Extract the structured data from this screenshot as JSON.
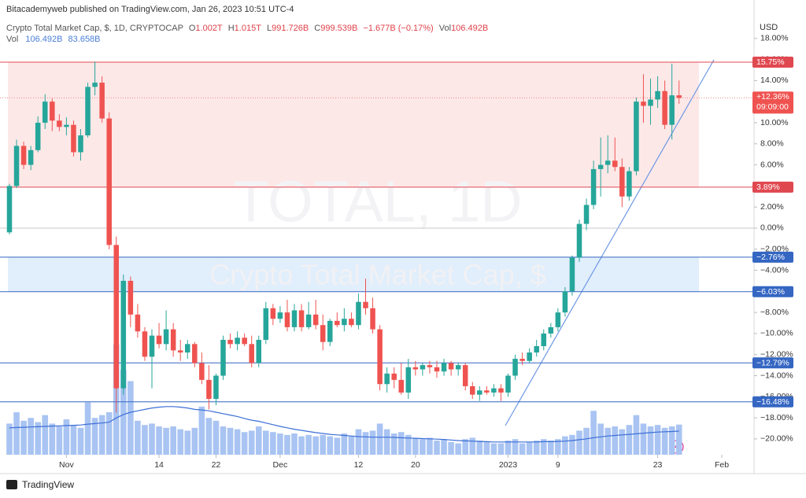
{
  "header": {
    "publisher": "Bitacademyweb published on TradingView.com, Jan 26, 2023 10:51 UTC-4",
    "symbol": "Crypto Total Market Cap, $, 1D, CRYPTOCAP",
    "ohlc_legend": [
      {
        "key": "O",
        "value": "1.002T"
      },
      {
        "key": "H",
        "value": "1.015T"
      },
      {
        "key": "L",
        "value": "991.726B"
      },
      {
        "key": "C",
        "value": "999.539B"
      }
    ],
    "change": "−1.677B (−0.17%)",
    "vol_legend": {
      "key": "Vol",
      "value": "106.492B"
    },
    "volume_line": {
      "key": "Vol",
      "value": "106.492B",
      "ma": "83.658B"
    },
    "footer": "TradingView"
  },
  "chart_data": {
    "type": "candlestick",
    "currency": "USD",
    "watermark": [
      "TOTAL, 1D",
      "Crypto Total Market Cap, $"
    ],
    "up_color": "#26a69a",
    "down_color": "#ef5350",
    "volume_color": "#a9c4f2",
    "ma_color": "#3d6fd6",
    "x": [
      0,
      1,
      2,
      3,
      4,
      5,
      6,
      7,
      8,
      9,
      10,
      11,
      12,
      13,
      14,
      15,
      16,
      17,
      18,
      19,
      20,
      21,
      22,
      23,
      24,
      25,
      26,
      27,
      28,
      29,
      30,
      31,
      32,
      33,
      34,
      35,
      36,
      37,
      38,
      39,
      40,
      41,
      42,
      43,
      44,
      45,
      46,
      47,
      48,
      49,
      50,
      51,
      52,
      53,
      54,
      55,
      56,
      57,
      58,
      59,
      60,
      61,
      62,
      63,
      64,
      65,
      66,
      67,
      68,
      69,
      70,
      71,
      72,
      73,
      74,
      75,
      76,
      77,
      78,
      79,
      80,
      81,
      82,
      83,
      84,
      85,
      86,
      87,
      88,
      89,
      90,
      91,
      92,
      93,
      94
    ],
    "xlim": [
      -1.326,
      104.53
    ],
    "xticks": [
      {
        "value": 8,
        "label": "Nov"
      },
      {
        "value": 21,
        "label": "14"
      },
      {
        "value": 29,
        "label": "22"
      },
      {
        "value": 38,
        "label": "Dec"
      },
      {
        "value": 49,
        "label": "12"
      },
      {
        "value": 57,
        "label": "20"
      },
      {
        "value": 70,
        "label": "2023"
      },
      {
        "value": 77,
        "label": "9"
      },
      {
        "value": 91,
        "label": "23"
      },
      {
        "value": 100,
        "label": "Feb"
      }
    ],
    "ylim": [
      -21.5,
      20
    ],
    "yticks": [
      {
        "value": 18,
        "label": "18.00%"
      },
      {
        "value": 16,
        "label": "16.00%"
      },
      {
        "value": 14,
        "label": "14.00%"
      },
      {
        "value": 12,
        "label": "12.00%"
      },
      {
        "value": 10,
        "label": "10.00%"
      },
      {
        "value": 8,
        "label": "8.00%"
      },
      {
        "value": 6,
        "label": "6.00%"
      },
      {
        "value": 4,
        "label": "4.00%"
      },
      {
        "value": 2,
        "label": "2.00%"
      },
      {
        "value": 0,
        "label": "0.00%"
      },
      {
        "value": -2,
        "label": "−2.00%"
      },
      {
        "value": -4,
        "label": "−4.00%"
      },
      {
        "value": -6,
        "label": "−6.00%"
      },
      {
        "value": -8,
        "label": "−8.00%"
      },
      {
        "value": -10,
        "label": "−10.00%"
      },
      {
        "value": -12,
        "label": "−12.00%"
      },
      {
        "value": -14,
        "label": "−14.00%"
      },
      {
        "value": -16,
        "label": "−16.00%"
      },
      {
        "value": -18,
        "label": "−18.00%"
      },
      {
        "value": -20,
        "label": "−20.00%"
      }
    ],
    "open": [
      -0.4,
      4.0,
      7.8,
      6.0,
      7.4,
      10.0,
      12.0,
      10.2,
      9.6,
      9.8,
      7.2,
      8.8,
      13.4,
      13.8,
      10.4,
      -1.6,
      -15.2,
      -5.0,
      -8.2,
      -9.8,
      -12.2,
      -10.2,
      -11.0,
      -9.6,
      -11.6,
      -11.8,
      -11.0,
      -12.8,
      -14.4,
      -16.2,
      -14.0,
      -10.6,
      -11.0,
      -10.4,
      -11.0,
      -12.8,
      -10.6,
      -7.6,
      -8.6,
      -8.0,
      -9.4,
      -7.8,
      -9.4,
      -8.2,
      -9.2,
      -10.8,
      -8.8,
      -9.2,
      -8.6,
      -9.2,
      -7.0,
      -7.6,
      -9.6,
      -14.8,
      -13.8,
      -14.4,
      -15.6,
      -13.2,
      -13.4,
      -13.0,
      -13.2,
      -13.6,
      -12.8,
      -13.4,
      -13.0,
      -15.0,
      -15.8,
      -15.4,
      -15.6,
      -15.2,
      -15.6,
      -14.0,
      -12.4,
      -12.6,
      -11.8,
      -11.2,
      -10.0,
      -9.4,
      -8.0,
      -6.0,
      -2.8,
      0.4,
      2.2,
      5.6,
      6.0,
      6.4,
      5.8,
      3.0,
      5.4,
      12.0,
      11.6,
      12.2,
      13.0,
      9.8,
      12.6
    ],
    "high": [
      4.2,
      8.4,
      8.2,
      7.8,
      10.6,
      12.7,
      12.3,
      10.8,
      10.5,
      10.2,
      9.4,
      13.8,
      15.8,
      14.4,
      11.0,
      -0.8,
      -4.4,
      -4.6,
      -7.2,
      -9.4,
      -9.6,
      -9.0,
      -7.8,
      -9.0,
      -10.6,
      -10.6,
      -10.8,
      -11.8,
      -13.0,
      -13.8,
      -10.2,
      -10.0,
      -9.8,
      -10.0,
      -10.2,
      -10.2,
      -7.0,
      -7.2,
      -7.4,
      -6.8,
      -7.2,
      -7.2,
      -7.0,
      -6.8,
      -8.2,
      -8.6,
      -8.0,
      -7.6,
      -8.0,
      -6.2,
      -4.8,
      -6.6,
      -9.2,
      -13.2,
      -13.2,
      -12.8,
      -12.4,
      -12.6,
      -12.8,
      -12.6,
      -12.6,
      -12.4,
      -12.6,
      -12.8,
      -12.8,
      -14.6,
      -15.0,
      -15.0,
      -14.8,
      -14.8,
      -13.8,
      -12.0,
      -11.8,
      -11.4,
      -10.6,
      -9.6,
      -9.0,
      -7.6,
      -5.6,
      -2.6,
      0.8,
      2.8,
      6.4,
      8.6,
      8.8,
      8.6,
      6.6,
      5.8,
      12.4,
      14.6,
      14.2,
      14.4,
      14.0,
      15.6,
      14.0
    ],
    "low": [
      -0.6,
      3.8,
      5.6,
      5.5,
      7.2,
      9.4,
      9.2,
      9.2,
      8.8,
      6.8,
      6.4,
      8.6,
      12.6,
      10.0,
      -2.0,
      -17.5,
      -15.8,
      -9.4,
      -10.4,
      -12.6,
      -15.2,
      -11.4,
      -11.6,
      -12.2,
      -12.6,
      -12.4,
      -13.2,
      -14.8,
      -17.2,
      -16.8,
      -14.4,
      -11.4,
      -11.6,
      -11.2,
      -13.2,
      -13.2,
      -11.0,
      -9.2,
      -9.0,
      -9.8,
      -9.8,
      -9.8,
      -9.6,
      -9.6,
      -11.6,
      -11.2,
      -9.4,
      -9.8,
      -9.4,
      -9.6,
      -8.2,
      -10.0,
      -15.4,
      -15.6,
      -15.2,
      -15.8,
      -16.2,
      -14.0,
      -14.0,
      -13.8,
      -14.2,
      -14.0,
      -14.0,
      -14.0,
      -15.4,
      -16.2,
      -16.4,
      -15.8,
      -16.0,
      -16.4,
      -16.0,
      -14.4,
      -13.0,
      -12.8,
      -12.2,
      -11.6,
      -10.4,
      -9.8,
      -8.4,
      -6.4,
      -3.2,
      -0.2,
      1.8,
      3.0,
      5.2,
      5.4,
      2.0,
      2.6,
      5.0,
      10.0,
      9.8,
      11.4,
      9.4,
      8.4,
      11.8
    ],
    "close": [
      4.0,
      7.8,
      6.0,
      7.4,
      10.0,
      12.0,
      10.2,
      9.6,
      9.8,
      7.2,
      8.8,
      13.4,
      13.8,
      10.4,
      -1.6,
      -15.2,
      -5.0,
      -8.2,
      -9.8,
      -12.2,
      -10.2,
      -11.0,
      -9.6,
      -11.6,
      -11.8,
      -11.0,
      -12.8,
      -14.4,
      -16.2,
      -14.0,
      -10.6,
      -11.0,
      -10.4,
      -11.0,
      -12.8,
      -10.6,
      -7.6,
      -8.6,
      -8.0,
      -9.4,
      -7.8,
      -9.4,
      -8.2,
      -9.2,
      -10.8,
      -8.8,
      -9.2,
      -8.6,
      -9.2,
      -7.0,
      -7.6,
      -9.6,
      -14.8,
      -13.8,
      -14.4,
      -15.6,
      -13.2,
      -13.4,
      -13.0,
      -13.2,
      -13.6,
      -12.8,
      -13.4,
      -13.0,
      -15.0,
      -15.8,
      -15.4,
      -15.6,
      -15.2,
      -15.6,
      -14.0,
      -12.4,
      -12.6,
      -11.8,
      -11.2,
      -10.0,
      -9.4,
      -8.0,
      -6.0,
      -2.8,
      0.4,
      2.2,
      5.6,
      6.0,
      6.4,
      5.8,
      3.0,
      5.4,
      12.0,
      11.6,
      12.2,
      13.0,
      9.8,
      12.6,
      12.36
    ],
    "volume": [
      110,
      150,
      120,
      130,
      115,
      140,
      110,
      100,
      125,
      105,
      95,
      185,
      130,
      140,
      150,
      390,
      300,
      260,
      120,
      105,
      110,
      100,
      95,
      100,
      90,
      85,
      95,
      170,
      130,
      120,
      100,
      95,
      90,
      80,
      85,
      100,
      85,
      80,
      75,
      70,
      75,
      65,
      70,
      65,
      70,
      65,
      60,
      75,
      65,
      90,
      80,
      85,
      110,
      90,
      75,
      80,
      70,
      60,
      55,
      60,
      50,
      55,
      45,
      40,
      55,
      60,
      50,
      45,
      40,
      40,
      50,
      55,
      40,
      45,
      50,
      55,
      50,
      55,
      65,
      70,
      85,
      95,
      155,
      110,
      95,
      100,
      90,
      105,
      140,
      110,
      100,
      105,
      95,
      100,
      106.492
    ],
    "volume_ma": [
      95,
      96,
      97,
      98,
      99,
      100,
      101,
      102,
      103,
      104,
      105,
      108,
      110,
      112,
      115,
      130,
      142,
      150,
      155,
      160,
      165,
      168,
      170,
      170,
      168,
      165,
      160,
      158,
      155,
      150,
      145,
      140,
      135,
      128,
      122,
      118,
      112,
      106,
      100,
      95,
      90,
      86,
      82,
      78,
      75,
      72,
      70,
      68,
      66,
      64,
      63,
      62,
      62,
      62,
      61,
      60,
      59,
      58,
      57,
      56,
      55,
      54,
      52,
      50,
      49,
      48,
      47,
      46,
      45,
      45,
      45,
      45,
      45,
      45,
      45,
      46,
      46,
      47,
      48,
      50,
      53,
      56,
      60,
      63,
      66,
      68,
      70,
      72,
      74,
      76,
      78,
      80,
      81,
      82,
      83.658
    ],
    "volume_lim": [
      0,
      400
    ],
    "levels": [
      {
        "value": 15.75,
        "label": "15.75%",
        "color": "#e04850"
      },
      {
        "value": 3.89,
        "label": "3.89%",
        "color": "#e04850"
      },
      {
        "value": -2.76,
        "label": "−2.76%",
        "color": "#3466c2"
      },
      {
        "value": -6.03,
        "label": "−6.03%",
        "color": "#3466c2"
      },
      {
        "value": -12.79,
        "label": "−12.79%",
        "color": "#3466c2"
      },
      {
        "value": -16.48,
        "label": "−16.48%",
        "color": "#3466c2"
      }
    ],
    "last_label": "+12.36%",
    "countdown": "09:09:00"
  }
}
